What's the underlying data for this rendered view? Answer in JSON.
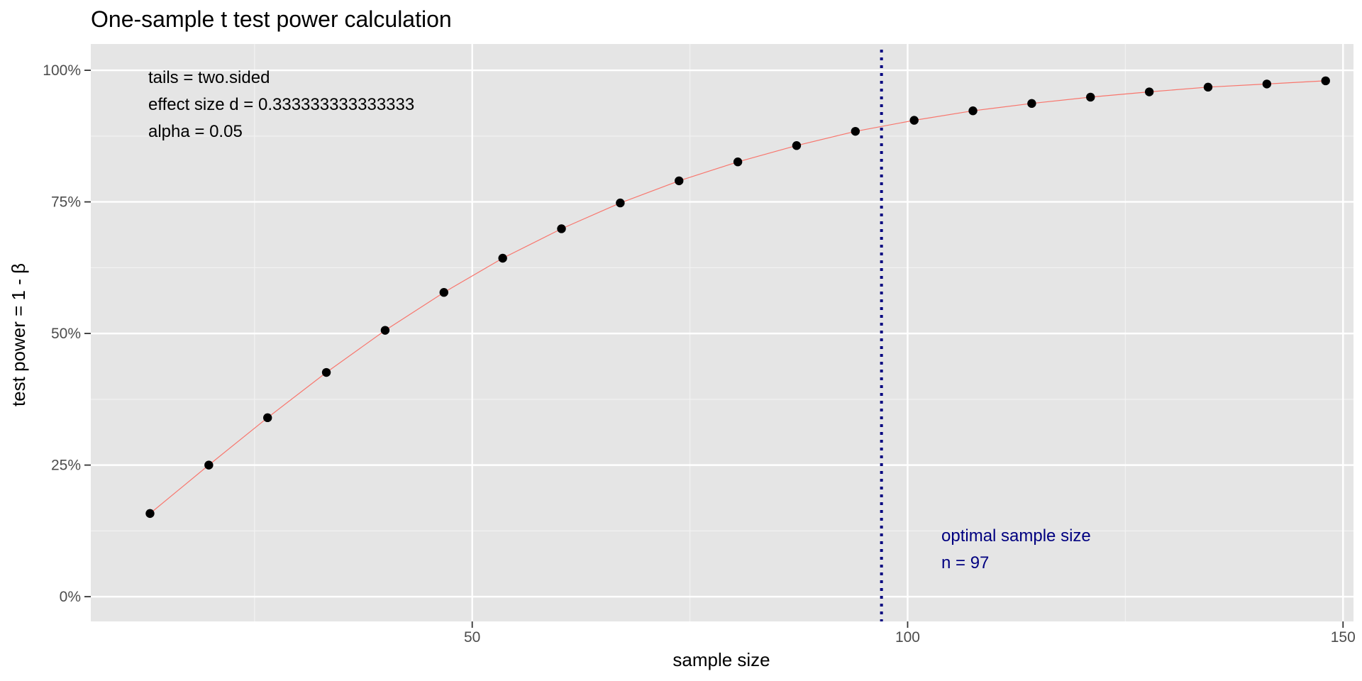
{
  "chart_data": {
    "type": "line",
    "title": "One-sample t test power calculation",
    "xlabel": "sample size",
    "ylabel": "test power = 1 - β",
    "xlim": [
      6.2,
      151.2
    ],
    "ylim": [
      -0.047,
      1.05
    ],
    "x_ticks": [
      {
        "value": 50,
        "label": "50"
      },
      {
        "value": 100,
        "label": "100"
      },
      {
        "value": 150,
        "label": "150"
      }
    ],
    "x_minor_ticks": [
      25,
      75,
      125
    ],
    "y_ticks": [
      {
        "value": 0,
        "label": "0%"
      },
      {
        "value": 0.25,
        "label": "25%"
      },
      {
        "value": 0.5,
        "label": "50%"
      },
      {
        "value": 0.75,
        "label": "75%"
      },
      {
        "value": 1,
        "label": "100%"
      }
    ],
    "y_minor_ticks": [
      0.125,
      0.375,
      0.625,
      0.875
    ],
    "grid": true,
    "series": [
      {
        "line_color": "#f8766d",
        "point_color": "#000000",
        "x": [
          13,
          19.75,
          26.5,
          33.25,
          40,
          46.75,
          53.5,
          60.25,
          67,
          73.75,
          80.5,
          87.25,
          94,
          100.75,
          107.5,
          114.25,
          121,
          127.75,
          134.5,
          141.25,
          148
        ],
        "y": [
          0.158,
          0.25,
          0.34,
          0.426,
          0.506,
          0.578,
          0.643,
          0.699,
          0.748,
          0.79,
          0.826,
          0.857,
          0.884,
          0.905,
          0.923,
          0.937,
          0.949,
          0.959,
          0.968,
          0.974,
          0.98
        ]
      }
    ],
    "optimal_line": {
      "x": 97,
      "color": "#000080",
      "style": "dotted"
    },
    "annotations": {
      "params": [
        "tails = two.sided",
        "effect size d = 0.333333333333333",
        "alpha = 0.05"
      ],
      "optimal": [
        "optimal sample size",
        "n = 97"
      ],
      "optimal_color": "#000080"
    }
  },
  "colors": {
    "panel_background": "#e5e5e5",
    "grid_major": "#ffffff",
    "grid_minor": "#f2f2f2",
    "tick_text": "#4d4d4d",
    "tick_mark": "#333333"
  }
}
